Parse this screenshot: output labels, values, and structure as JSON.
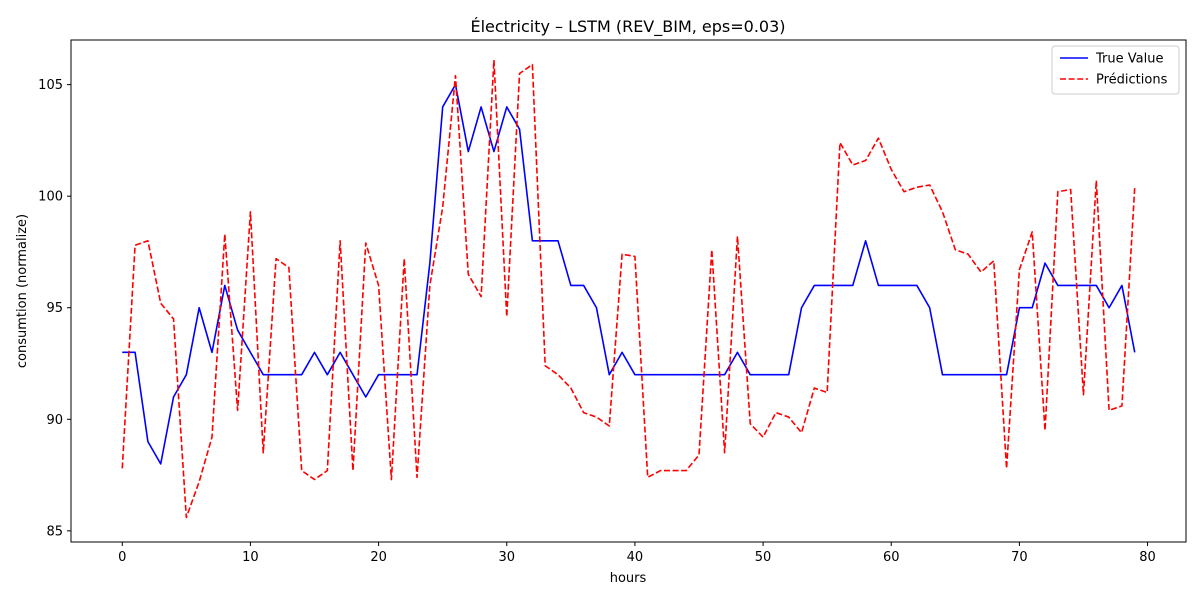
{
  "chart_data": {
    "type": "line",
    "title": "Électricity – LSTM (REV_BIM, eps=0.03)",
    "xlabel": "hours",
    "ylabel": "consumtion (normalize)",
    "xlim": [
      -4,
      83
    ],
    "ylim": [
      84.5,
      107
    ],
    "xticks": [
      0,
      10,
      20,
      30,
      40,
      50,
      60,
      70,
      80
    ],
    "yticks": [
      85,
      90,
      95,
      100,
      105
    ],
    "grid": false,
    "legend_position": "top-right",
    "x": [
      0,
      1,
      2,
      3,
      4,
      5,
      6,
      7,
      8,
      9,
      10,
      11,
      12,
      13,
      14,
      15,
      16,
      17,
      18,
      19,
      20,
      21,
      22,
      23,
      24,
      25,
      26,
      27,
      28,
      29,
      30,
      31,
      32,
      33,
      34,
      35,
      36,
      37,
      38,
      39,
      40,
      41,
      42,
      43,
      44,
      45,
      46,
      47,
      48,
      49,
      50,
      51,
      52,
      53,
      54,
      55,
      56,
      57,
      58,
      59,
      60,
      61,
      62,
      63,
      64,
      65,
      66,
      67,
      68,
      69,
      70,
      71,
      72,
      73,
      74,
      75,
      76,
      77,
      78,
      79
    ],
    "series": [
      {
        "name": "True Value",
        "color": "#0000ff",
        "style": "solid",
        "values": [
          93,
          93,
          89,
          88,
          91,
          92,
          95,
          93,
          96,
          94,
          93,
          92,
          92,
          92,
          92,
          93,
          92,
          93,
          92,
          91,
          92,
          92,
          92,
          92,
          97,
          104,
          105,
          102,
          104,
          102,
          104,
          103,
          98,
          98,
          98,
          96,
          96,
          95,
          92,
          93,
          92,
          92,
          92,
          92,
          92,
          92,
          92,
          92,
          93,
          92,
          92,
          92,
          92,
          95,
          96,
          96,
          96,
          96,
          98,
          96,
          96,
          96,
          96,
          95,
          92,
          92,
          92,
          92,
          92,
          92,
          95,
          95,
          97,
          96,
          96,
          96,
          96,
          95,
          96,
          93
        ]
      },
      {
        "name": "Prédictions",
        "color": "#ff0000",
        "style": "dashed",
        "values": [
          87.8,
          97.8,
          98.0,
          95.2,
          94.5,
          85.6,
          87.2,
          89.2,
          98.3,
          90.4,
          99.3,
          88.5,
          97.2,
          96.8,
          87.7,
          87.3,
          87.7,
          98.0,
          87.7,
          97.9,
          96.0,
          87.3,
          97.2,
          87.4,
          96.0,
          99.5,
          105.4,
          96.5,
          95.5,
          106.1,
          94.6,
          105.5,
          105.9,
          92.4,
          92.0,
          91.4,
          90.3,
          90.1,
          89.7,
          97.4,
          97.3,
          87.4,
          87.7,
          87.7,
          87.7,
          88.4,
          97.6,
          88.5,
          98.2,
          89.8,
          89.2,
          90.3,
          90.1,
          89.4,
          91.4,
          91.2,
          102.4,
          101.4,
          101.6,
          102.6,
          101.2,
          100.2,
          100.4,
          100.5,
          99.3,
          97.6,
          97.4,
          96.6,
          97.1,
          87.8,
          96.7,
          98.4,
          89.5,
          100.2,
          100.3,
          91.1,
          100.7,
          90.4,
          90.6,
          100.4
        ]
      }
    ]
  }
}
